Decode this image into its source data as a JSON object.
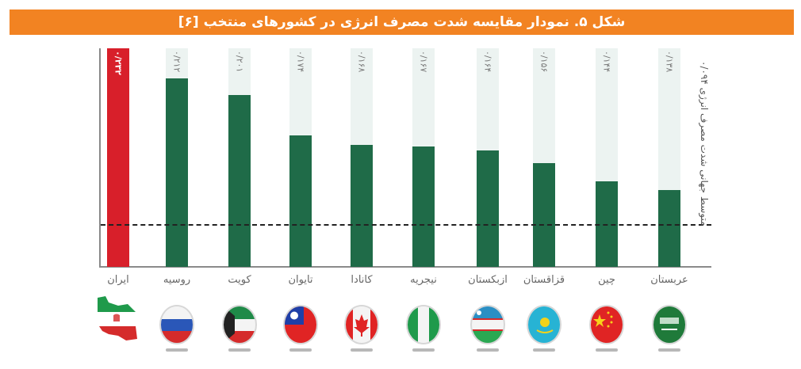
{
  "title": "شکل ۵. نمودار مقایسه شدت مصرف انرژی در کشورهای منتخب [۶]",
  "avg_label": "متوسط جهانی شدت مصرف انرژی ۰/۰۹۴",
  "colors": {
    "title_bg": "#F28322",
    "bar": "#1f6b48",
    "highlight": "#d81f2a",
    "track": "#ecf3f1"
  },
  "countries": [
    {
      "name": "ایران",
      "value_label": "۰/۲۳۲",
      "flag": "iran-flag"
    },
    {
      "name": "روسیه",
      "value_label": "۰/۲۱۲",
      "flag": "russia-flag"
    },
    {
      "name": "کویت",
      "value_label": "۰/۲۰۱",
      "flag": "kuwait-flag"
    },
    {
      "name": "تایوان",
      "value_label": "۰/۱۷۴",
      "flag": "taiwan-flag"
    },
    {
      "name": "کانادا",
      "value_label": "۰/۱۶۸",
      "flag": "canada-flag"
    },
    {
      "name": "نیجریه",
      "value_label": "۰/۱۶۷",
      "flag": "nigeria-flag"
    },
    {
      "name": "ازبکستان",
      "value_label": "۰/۱۶۴",
      "flag": "uzbekistan-flag"
    },
    {
      "name": "قزاقستان",
      "value_label": "۰/۱۵۶",
      "flag": "kazakhstan-flag"
    },
    {
      "name": "چین",
      "value_label": "۰/۱۴۴",
      "flag": "china-flag"
    },
    {
      "name": "عربستان",
      "value_label": "۰/۱۳۸",
      "flag": "saudi-flag"
    }
  ],
  "chart_data": {
    "type": "bar",
    "title": "شکل ۵. نمودار مقایسه شدت مصرف انرژی در کشورهای منتخب [۶]",
    "xlabel": "",
    "ylabel": "شدت مصرف انرژی",
    "categories": [
      "ایران",
      "روسیه",
      "کویت",
      "تایوان",
      "کانادا",
      "نیجریه",
      "ازبکستان",
      "قزاقستان",
      "چین",
      "عربستان"
    ],
    "categories_en": [
      "Iran",
      "Russia",
      "Kuwait",
      "Taiwan",
      "Canada",
      "Nigeria",
      "Uzbekistan",
      "Kazakhstan",
      "China",
      "Saudi Arabia"
    ],
    "values": [
      0.232,
      0.212,
      0.201,
      0.174,
      0.168,
      0.167,
      0.164,
      0.156,
      0.144,
      0.138
    ],
    "value_labels": [
      "۰/۲۳۲",
      "۰/۲۱۲",
      "۰/۲۰۱",
      "۰/۱۷۴",
      "۰/۱۶۸",
      "۰/۱۶۷",
      "۰/۱۶۴",
      "۰/۱۵۶",
      "۰/۱۴۴",
      "۰/۱۳۸"
    ],
    "highlight": "ایران",
    "reference_line": {
      "label": "متوسط جهانی شدت مصرف انرژی",
      "value": 0.094,
      "value_label": "۰/۰۹۴",
      "style": "dashed"
    },
    "grid": false,
    "legend": null,
    "note": "Bar heights are drawn on a non-zero-based visual scale (values shown as labels)"
  }
}
